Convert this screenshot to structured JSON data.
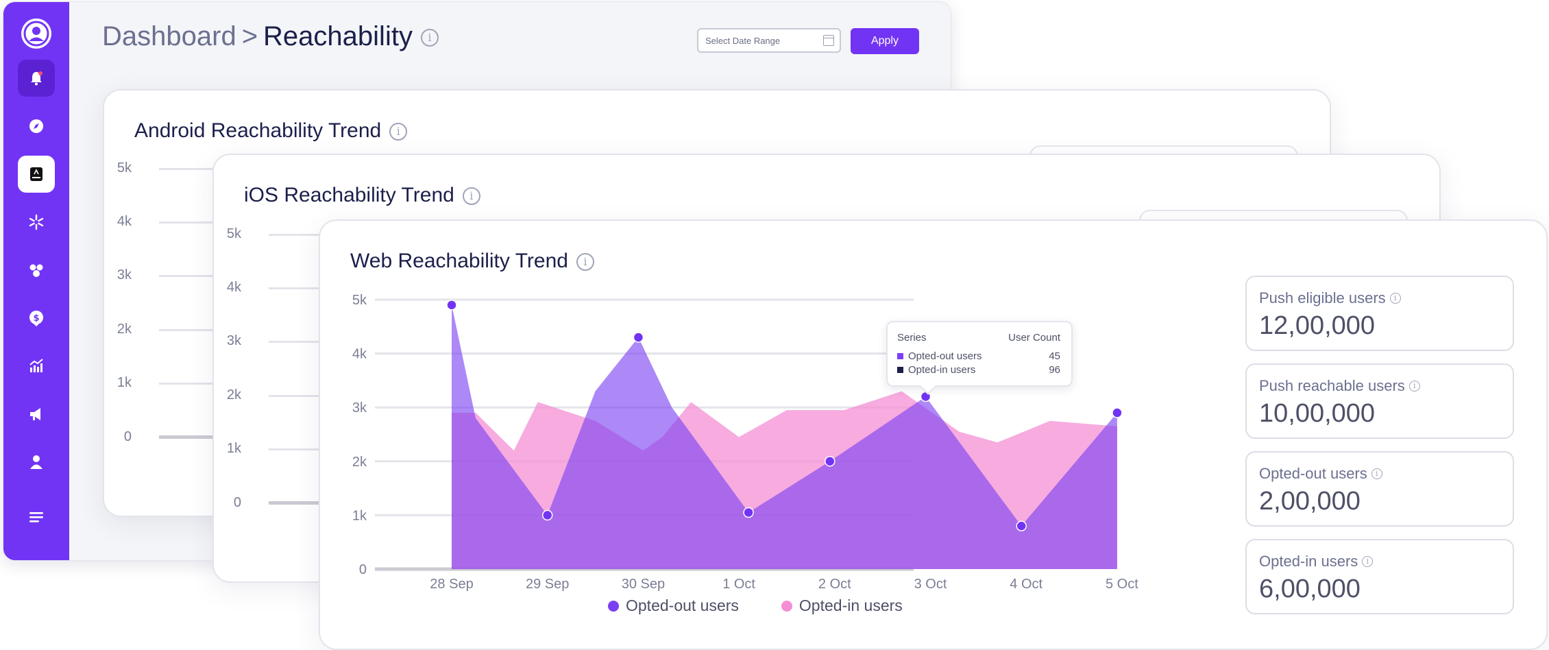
{
  "header": {
    "breadcrumb_root": "Dashboard",
    "breadcrumb_sep": ">",
    "breadcrumb_current": "Reachability",
    "date_placeholder": "Select Date Range",
    "apply_label": "Apply"
  },
  "sidebar": {
    "items": [
      {
        "icon": "bell-icon"
      },
      {
        "icon": "compass-icon"
      },
      {
        "icon": "app-icon"
      },
      {
        "icon": "snowflake-icon"
      },
      {
        "icon": "segments-icon"
      },
      {
        "icon": "revenue-icon"
      },
      {
        "icon": "analytics-icon"
      },
      {
        "icon": "megaphone-icon"
      },
      {
        "icon": "user-icon"
      },
      {
        "icon": "menu-icon"
      }
    ]
  },
  "android_card": {
    "title": "Android Reachability Trend",
    "y_ticks": [
      "5k",
      "4k",
      "3k",
      "2k",
      "1k",
      "0"
    ]
  },
  "ios_card": {
    "title": "iOS Reachability Trend",
    "y_ticks": [
      "5k",
      "4k",
      "3k",
      "2k",
      "1k",
      "0"
    ]
  },
  "web_card": {
    "title": "Web Reachability Trend",
    "legend": [
      "Opted-out users",
      "Opted-in users"
    ],
    "tooltip": {
      "header_series": "Series",
      "header_count": "User Count",
      "rows": [
        {
          "name": "Opted-out users",
          "value": "45"
        },
        {
          "name": "Opted-in users",
          "value": "96"
        }
      ]
    },
    "stats": [
      {
        "label": "Push eligible users",
        "value": "12,00,000"
      },
      {
        "label": "Push reachable users",
        "value": "10,00,000"
      },
      {
        "label": "Opted-out users",
        "value": "2,00,000"
      },
      {
        "label": "Opted-in users",
        "value": "6,00,000"
      }
    ]
  },
  "colors": {
    "brand": "#7234f4",
    "opted_out": "#7b3ff2",
    "opted_in": "#f48fd4"
  },
  "chart_data": {
    "type": "area",
    "title": "Web Reachability Trend",
    "categories": [
      "28 Sep",
      "29 Sep",
      "30 Sep",
      "1 Oct",
      "2 Oct",
      "3 Oct",
      "4 Oct",
      "5 Oct"
    ],
    "y_ticks": [
      "0",
      "1k",
      "2k",
      "3k",
      "4k",
      "5k"
    ],
    "ylim": [
      0,
      5000
    ],
    "series": [
      {
        "name": "Opted-out users",
        "color": "#7b3ff2",
        "points": [
          {
            "x": 0,
            "y": 4900
          },
          {
            "x": 0.25,
            "y": 2800
          },
          {
            "x": 1,
            "y": 1000
          },
          {
            "x": 1.5,
            "y": 3300
          },
          {
            "x": 1.95,
            "y": 4300
          },
          {
            "x": 2.3,
            "y": 3000
          },
          {
            "x": 3.1,
            "y": 1050
          },
          {
            "x": 3.95,
            "y": 2000
          },
          {
            "x": 4.95,
            "y": 3200
          },
          {
            "x": 5.95,
            "y": 800
          },
          {
            "x": 6.95,
            "y": 2900
          }
        ],
        "markers": [
          {
            "x": 0,
            "y": 4900
          },
          {
            "x": 1,
            "y": 1000
          },
          {
            "x": 1.95,
            "y": 4300
          },
          {
            "x": 3.1,
            "y": 1050
          },
          {
            "x": 3.95,
            "y": 2000
          },
          {
            "x": 4.95,
            "y": 3200
          },
          {
            "x": 5.95,
            "y": 800
          },
          {
            "x": 6.95,
            "y": 2900
          }
        ]
      },
      {
        "name": "Opted-in users",
        "color": "#f48fd4",
        "points": [
          {
            "x": 0,
            "y": 2900
          },
          {
            "x": 0.25,
            "y": 2900
          },
          {
            "x": 0.65,
            "y": 2200
          },
          {
            "x": 0.9,
            "y": 3100
          },
          {
            "x": 1.5,
            "y": 2750
          },
          {
            "x": 2.0,
            "y": 2200
          },
          {
            "x": 2.2,
            "y": 2450
          },
          {
            "x": 2.5,
            "y": 3100
          },
          {
            "x": 3.0,
            "y": 2450
          },
          {
            "x": 3.5,
            "y": 2950
          },
          {
            "x": 4.1,
            "y": 2950
          },
          {
            "x": 4.7,
            "y": 3300
          },
          {
            "x": 5.3,
            "y": 2550
          },
          {
            "x": 5.7,
            "y": 2350
          },
          {
            "x": 6.25,
            "y": 2750
          },
          {
            "x": 6.95,
            "y": 2650
          }
        ]
      }
    ],
    "legend_position": "bottom-center",
    "grid": true
  }
}
